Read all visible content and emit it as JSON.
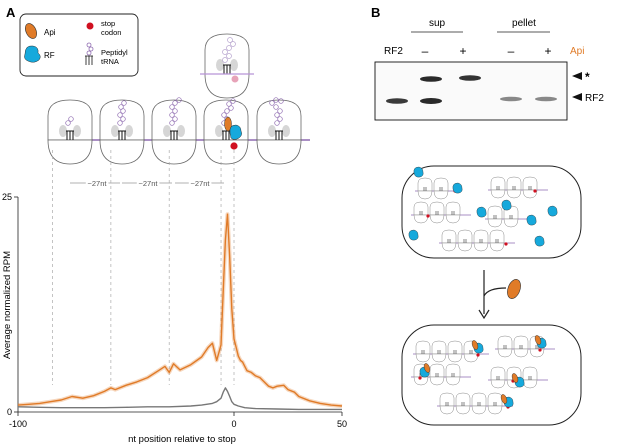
{
  "panels": {
    "a": "A",
    "b": "B"
  },
  "legend": {
    "api": "Api",
    "rf": "RF",
    "stop_codon_line1": "stop",
    "stop_codon_line2": "codon",
    "trna_line1": "Peptidyl",
    "trna_line2": "tRNA"
  },
  "spacing_labels": [
    "~27nt",
    "~27nt",
    "~27nt"
  ],
  "chart_data": {
    "type": "line",
    "xlabel": "nt position relative to stop",
    "ylabel": "Average normalized RPM",
    "xlim": [
      -100,
      50
    ],
    "ylim": [
      0,
      25
    ],
    "x_ticks": [
      "-100",
      "0",
      "50"
    ],
    "y_ticks": [
      "0",
      "25"
    ],
    "dashed_guides_x": [
      -84,
      -57,
      -30,
      -6,
      0
    ],
    "series": [
      {
        "color": "#e07b28",
        "x": [
          -100,
          -95,
          -90,
          -85,
          -80,
          -75,
          -70,
          -65,
          -60,
          -57,
          -55,
          -50,
          -45,
          -40,
          -35,
          -32,
          -30,
          -28,
          -25,
          -20,
          -15,
          -12,
          -10,
          -8,
          -6,
          -5,
          -4,
          -3,
          -2,
          -1,
          0,
          1,
          2,
          3,
          4,
          5,
          6,
          8,
          10,
          12,
          14,
          16,
          18,
          20,
          23,
          25,
          28,
          30,
          35,
          40,
          45,
          50
        ],
        "values": [
          0.8,
          0.9,
          1.0,
          1.2,
          1.4,
          1.8,
          1.6,
          1.9,
          2.4,
          2.8,
          2.6,
          3.1,
          3.5,
          4.0,
          4.8,
          5.3,
          4.6,
          5.6,
          4.9,
          5.5,
          6.4,
          7.5,
          8.0,
          6.0,
          7.8,
          14.0,
          20.0,
          23.0,
          18.0,
          12.0,
          8.5,
          7.5,
          6.5,
          6.0,
          5.8,
          5.3,
          4.8,
          4.6,
          4.2,
          4.0,
          3.5,
          3.0,
          2.8,
          3.0,
          3.1,
          2.6,
          2.3,
          1.8,
          1.3,
          1.0,
          0.8,
          0.7
        ]
      },
      {
        "color": "#777777",
        "x": [
          -100,
          -90,
          -80,
          -70,
          -60,
          -50,
          -40,
          -30,
          -20,
          -15,
          -10,
          -8,
          -6,
          -5,
          -4,
          -3,
          -2,
          -1,
          0,
          2,
          5,
          10,
          20,
          30,
          40,
          50
        ],
        "values": [
          0.6,
          0.55,
          0.5,
          0.5,
          0.5,
          0.55,
          0.6,
          0.6,
          0.7,
          0.8,
          1.0,
          1.2,
          1.6,
          2.3,
          2.8,
          2.4,
          1.8,
          1.2,
          0.9,
          0.7,
          0.5,
          0.4,
          0.35,
          0.3,
          0.3,
          0.3
        ]
      }
    ]
  },
  "gel": {
    "rf2_label": "RF2",
    "groups": [
      "sup",
      "pellet"
    ],
    "lanes": [
      "–",
      "+",
      "–",
      "+"
    ],
    "api_label": "Api",
    "band_star": "*",
    "band_rf2": "RF2"
  },
  "colors": {
    "orange": "#e07b28",
    "blue": "#16a9dc",
    "red": "#d01020",
    "purple": "#8e6ab0"
  }
}
